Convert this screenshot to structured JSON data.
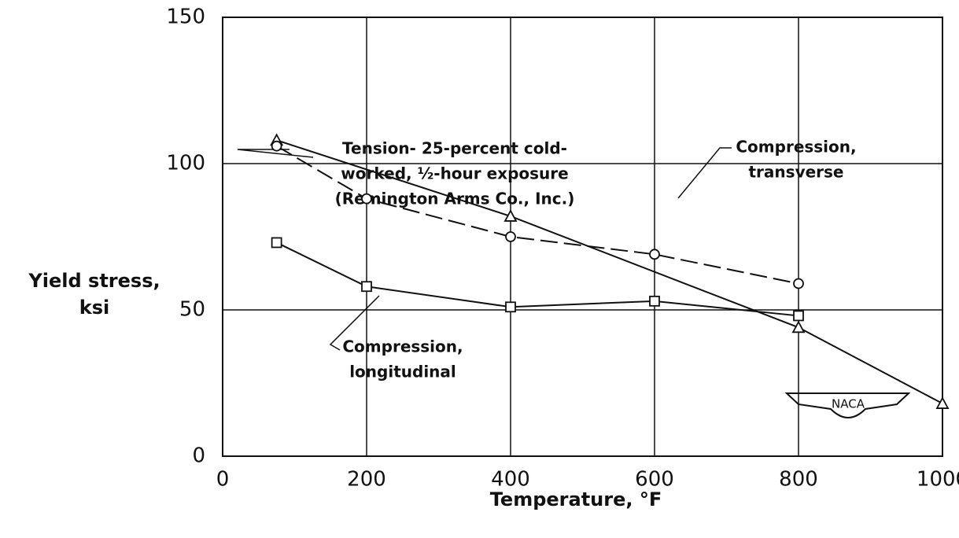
{
  "chart_data": {
    "type": "line",
    "x_label": "Temperature,  °F",
    "y_label_lines": [
      "Yield  stress,",
      "ksi"
    ],
    "logo": "NACA",
    "xlim": [
      0,
      1000
    ],
    "xticks": [
      0,
      200,
      400,
      600,
      800,
      1000
    ],
    "ylim": [
      0,
      150
    ],
    "yticks": [
      0,
      50,
      100,
      150
    ],
    "grid": true,
    "series": [
      {
        "label_lines": [
          "Tension- 25-percent cold-",
          "worked,  ½-hour exposure",
          "(Remington  Arms Co., Inc.)"
        ],
        "color": "#111111",
        "marker": "triangle",
        "dashed": false,
        "x": [
          75,
          400,
          800,
          1000
        ],
        "values": [
          108,
          82,
          44,
          18
        ]
      },
      {
        "label_lines": [
          "Compression,",
          "transverse"
        ],
        "color": "#111111",
        "marker": "circle",
        "dashed": true,
        "x": [
          75,
          200,
          400,
          600,
          800
        ],
        "values": [
          106,
          88,
          75,
          69,
          59
        ]
      },
      {
        "label_lines": [
          "Compression,",
          "longitudinal"
        ],
        "color": "#111111",
        "marker": "square",
        "dashed": false,
        "x": [
          75,
          200,
          400,
          600,
          800
        ],
        "values": [
          73,
          58,
          51,
          53,
          48
        ]
      }
    ]
  }
}
